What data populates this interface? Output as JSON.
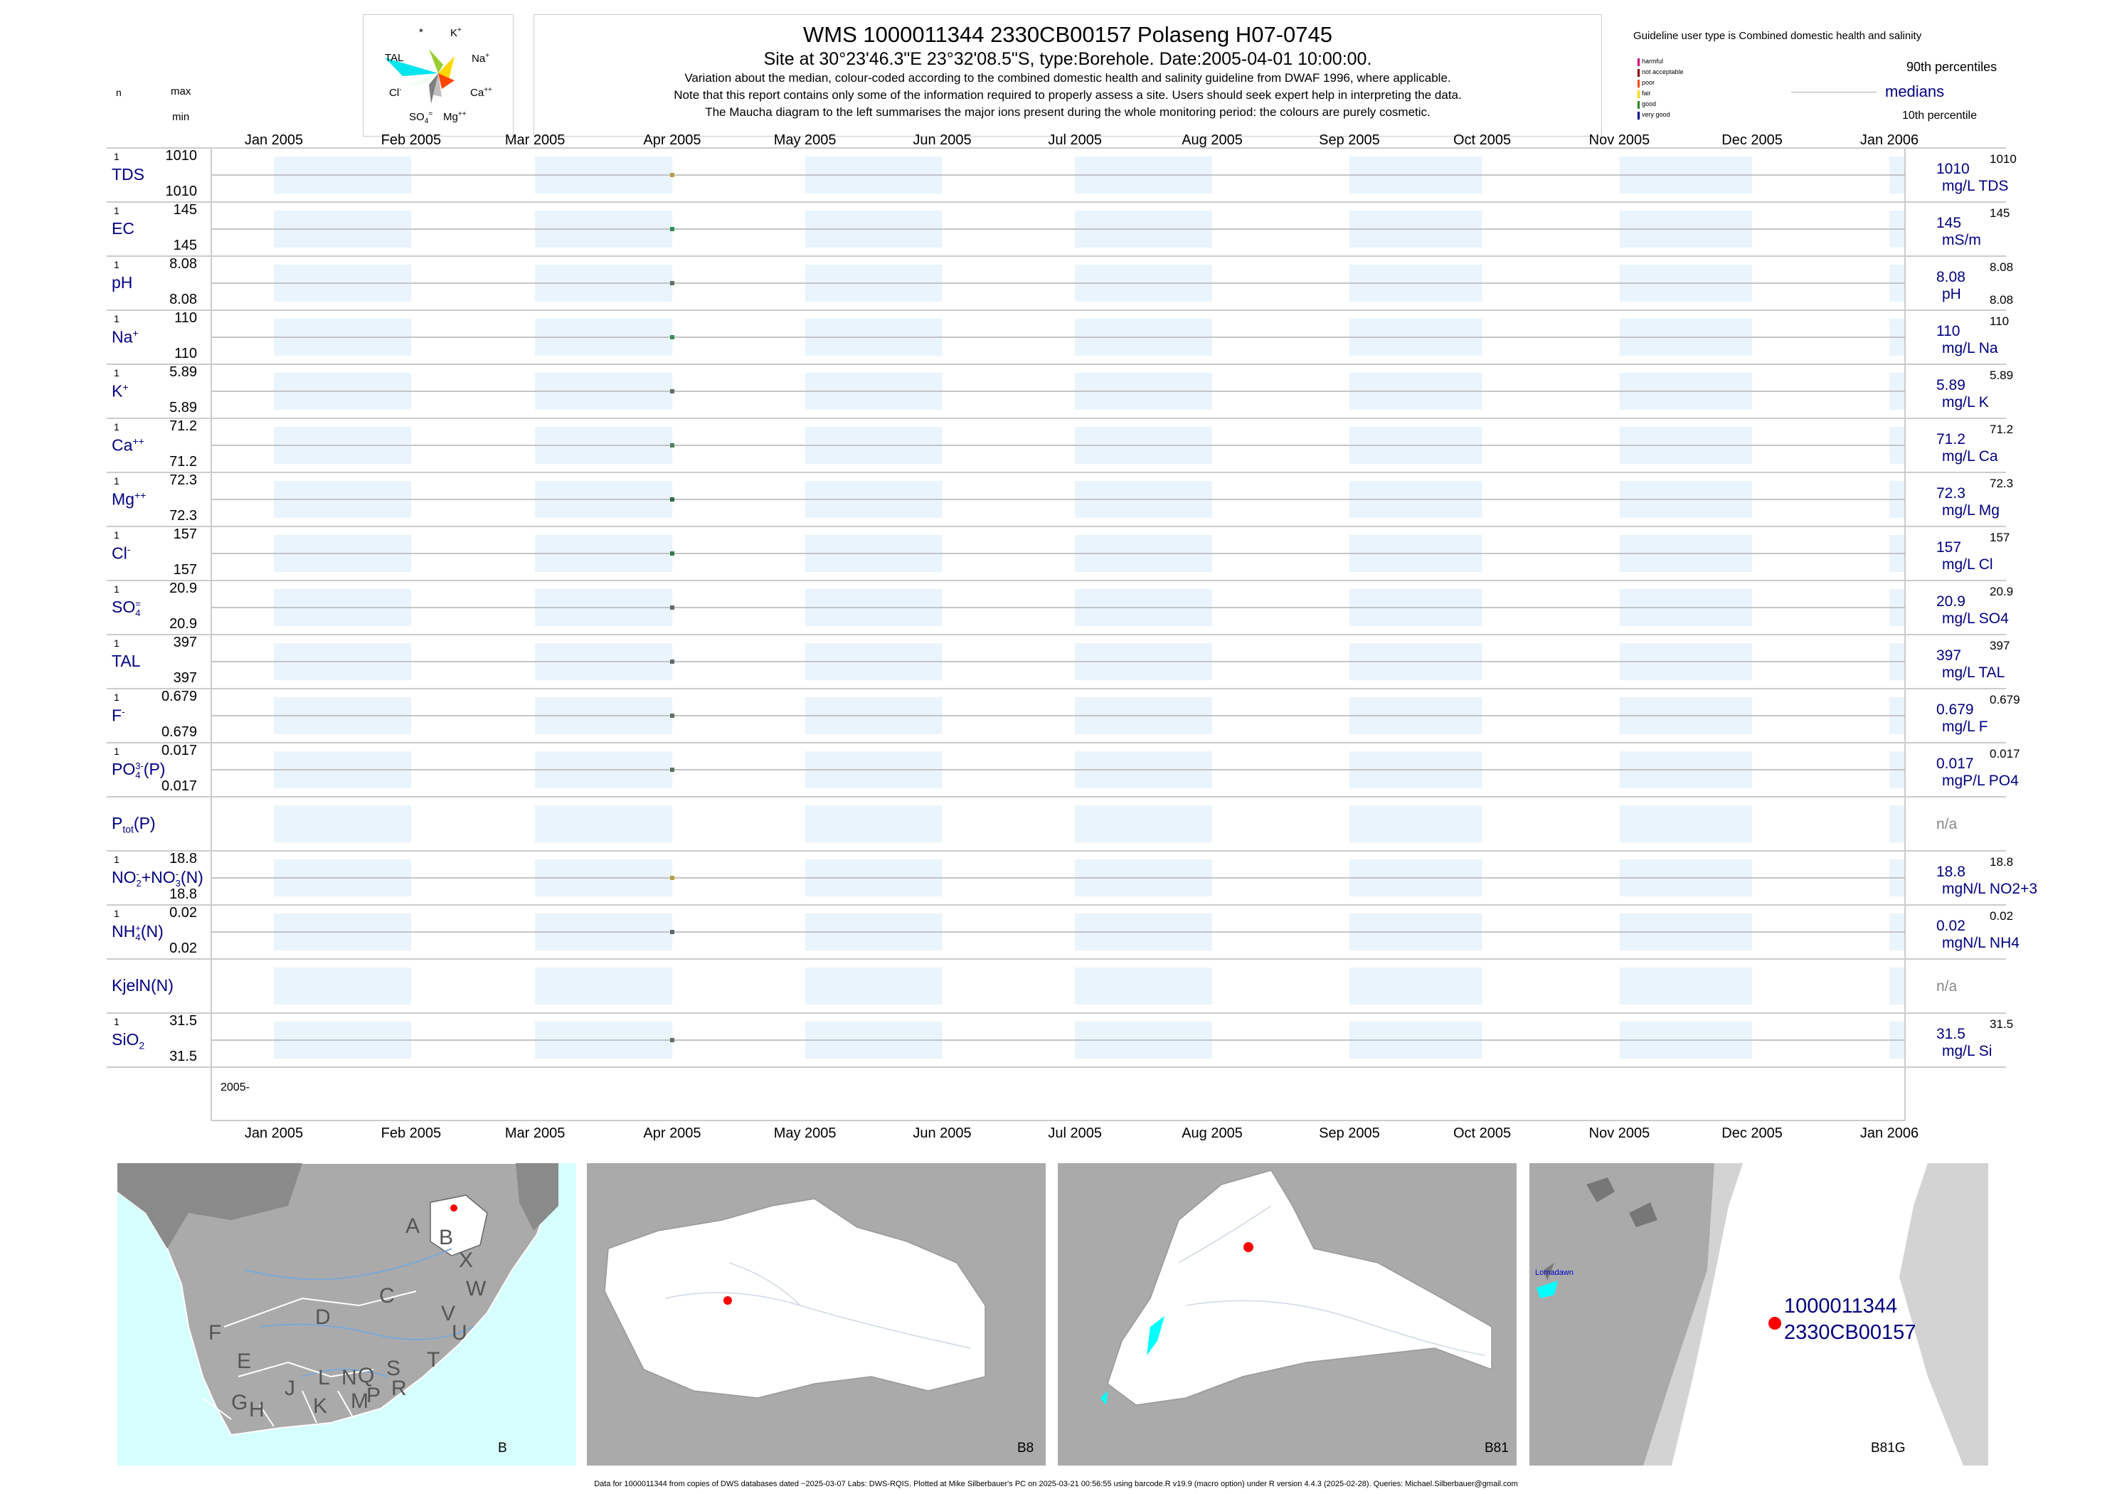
{
  "header": {
    "title": "WMS 1000011344 2330CB00157 Polaseng H07-0745",
    "site_line": "Site at 30°23'46.3\"E 23°32'08.5\"S, type:Borehole. Date:2005-04-01 10:00:00.",
    "note1": "Variation about the median,  colour-coded according to the combined domestic health and salinity guideline from DWAF 1996, where applicable.",
    "note2": "Note that this report contains only some of the information required to properly assess a site. Users should seek expert help in interpreting the data.",
    "note3": "The Maucha diagram to the left summarises the major ions present during the whole monitoring period: the colours are purely cosmetic."
  },
  "left_header": {
    "n": "n",
    "max": "max",
    "min": "min"
  },
  "maucha": {
    "labels": {
      "star": "*",
      "k": "K",
      "k_sup": "+",
      "tal": "TAL",
      "na": "Na",
      "na_sup": "+",
      "cl": "Cl",
      "cl_sup": "-",
      "ca": "Ca",
      "ca_sup": "++",
      "so4": "SO",
      "so4_sub": "4",
      "so4_sup": "=",
      "mg": "Mg",
      "mg_sup": "++"
    },
    "colors": {
      "tal": "#00e5ee",
      "na": "#ffd700",
      "k": "#9acd32",
      "ca": "#ff4500",
      "mg": "#c0c0c0",
      "so4": "#7f7f7f",
      "cl": "#f0fff0"
    }
  },
  "legend": {
    "guideline": "Guideline user type is Combined domestic health and salinity",
    "p90": "90th percentiles",
    "medians": "medians",
    "p10": "10th percentile",
    "classes": [
      {
        "label": "harmful",
        "color": "#cc0077"
      },
      {
        "label": "not acceptable",
        "color": "#8b0000"
      },
      {
        "label": "poor",
        "color": "#ff4500"
      },
      {
        "label": "fair",
        "color": "#ffd700"
      },
      {
        "label": "good",
        "color": "#228b22"
      },
      {
        "label": "very good",
        "color": "#00008b"
      }
    ]
  },
  "chart_data": {
    "type": "scatter",
    "x_range": [
      "2005-01-01",
      "2006-01-01"
    ],
    "x_tick_labels": [
      "Jan 2005",
      "Feb 2005",
      "Mar 2005",
      "Apr 2005",
      "May 2005",
      "Jun 2005",
      "Jul 2005",
      "Aug 2005",
      "Sep 2005",
      "Oct 2005",
      "Nov 2005",
      "Dec 2005",
      "Jan 2006"
    ],
    "year_label": "2005-",
    "sample_date": "2005-04-01",
    "rows": [
      {
        "name": "TDS",
        "sup": "",
        "sub": "",
        "n": "1",
        "max": "1010",
        "min": "1010",
        "median": "1010",
        "unit": "mg/L TDS",
        "p90": "1010",
        "p10": "",
        "dot_color": "#b8a040"
      },
      {
        "name": "EC",
        "sup": "",
        "sub": "",
        "n": "1",
        "max": "145",
        "min": "145",
        "median": "145",
        "unit": "mS/m",
        "p90": "145",
        "p10": "",
        "dot_color": "#2e8b57"
      },
      {
        "name": "pH",
        "sup": "",
        "sub": "",
        "n": "1",
        "max": "8.08",
        "min": "8.08",
        "median": "8.08",
        "unit": "pH",
        "p90": "8.08",
        "p10": "8.08",
        "dot_color": "#607060"
      },
      {
        "name": "Na",
        "sup": "+",
        "sub": "",
        "n": "1",
        "max": "110",
        "min": "110",
        "median": "110",
        "unit": "mg/L Na",
        "p90": "110",
        "p10": "",
        "dot_color": "#3c8c5c"
      },
      {
        "name": "K",
        "sup": "+",
        "sub": "",
        "n": "1",
        "max": "5.89",
        "min": "5.89",
        "median": "5.89",
        "unit": "mg/L K",
        "p90": "5.89",
        "p10": "",
        "dot_color": "#607060"
      },
      {
        "name": "Ca",
        "sup": "++",
        "sub": "",
        "n": "1",
        "max": "71.2",
        "min": "71.2",
        "median": "71.2",
        "unit": "mg/L Ca",
        "p90": "71.2",
        "p10": "",
        "dot_color": "#4f7f5f"
      },
      {
        "name": "Mg",
        "sup": "++",
        "sub": "",
        "n": "1",
        "max": "72.3",
        "min": "72.3",
        "median": "72.3",
        "unit": "mg/L Mg",
        "p90": "72.3",
        "p10": "",
        "dot_color": "#2e6b47"
      },
      {
        "name": "Cl",
        "sup": "-",
        "sub": "",
        "n": "1",
        "max": "157",
        "min": "157",
        "median": "157",
        "unit": "mg/L Cl",
        "p90": "157",
        "p10": "",
        "dot_color": "#2e7b47"
      },
      {
        "name": "SO",
        "sup": "=",
        "sub": "4",
        "n": "1",
        "max": "20.9",
        "min": "20.9",
        "median": "20.9",
        "unit": "mg/L SO4",
        "p90": "20.9",
        "p10": "",
        "dot_color": "#606870"
      },
      {
        "name": "TAL",
        "sup": "",
        "sub": "",
        "n": "1",
        "max": "397",
        "min": "397",
        "median": "397",
        "unit": "mg/L TAL",
        "p90": "397",
        "p10": "",
        "dot_color": "#606870"
      },
      {
        "name": "F",
        "sup": "-",
        "sub": "",
        "n": "1",
        "max": "0.679",
        "min": "0.679",
        "median": "0.679",
        "unit": "mg/L F",
        "p90": "0.679",
        "p10": "",
        "dot_color": "#607060"
      },
      {
        "name": "PO",
        "sup": "3-",
        "sub": "4",
        "suffix": "(P)",
        "n": "1",
        "max": "0.017",
        "min": "0.017",
        "median": "0.017",
        "unit": "mgP/L PO4",
        "p90": "0.017",
        "p10": "",
        "dot_color": "#607060"
      },
      {
        "name": "P",
        "sup": "",
        "sub": "tot",
        "suffix": "(P)",
        "n": "",
        "max": "",
        "min": "",
        "median": "n/a",
        "unit": "",
        "p90": "",
        "p10": "",
        "dot_color": ""
      },
      {
        "name": "NO",
        "sup": "-",
        "sub": "2",
        "suffix": "+NO",
        "sub2": "3",
        "sup2": "-",
        "suffix2": "(N)",
        "n": "1",
        "max": "18.8",
        "min": "18.8",
        "median": "18.8",
        "unit": "mgN/L NO2+3",
        "p90": "18.8",
        "p10": "",
        "dot_color": "#b8a040"
      },
      {
        "name": "NH",
        "sup": "+",
        "sub": "4",
        "suffix": "(N)",
        "n": "1",
        "max": "0.02",
        "min": "0.02",
        "median": "0.02",
        "unit": "mgN/L NH4",
        "p90": "0.02",
        "p10": "",
        "dot_color": "#606870"
      },
      {
        "name": "KjelN(N)",
        "sup": "",
        "sub": "",
        "n": "",
        "max": "",
        "min": "",
        "median": "n/a",
        "unit": "",
        "p90": "",
        "p10": "",
        "dot_color": ""
      },
      {
        "name": "SiO",
        "sup": "",
        "sub": "2",
        "n": "1",
        "max": "31.5",
        "min": "31.5",
        "median": "31.5",
        "unit": "mg/L Si",
        "p90": "31.5",
        "p10": "",
        "dot_color": "#607060"
      }
    ]
  },
  "maps": {
    "panel1": {
      "label": "B",
      "letters": [
        "A",
        "B",
        "X",
        "W",
        "C",
        "V",
        "U",
        "D",
        "F",
        "T",
        "E",
        "S",
        "Q",
        "R",
        "N",
        "P",
        "L",
        "M",
        "J",
        "K",
        "G",
        "H"
      ]
    },
    "panel2": {
      "label": "B8"
    },
    "panel3": {
      "label": "B81"
    },
    "panel4": {
      "label": "B81G",
      "town": "Lomadawn",
      "site_id": "1000011344",
      "site_code": "2330CB00157"
    },
    "site_color": "#ff0000",
    "water_color": "#00ffff",
    "sea_color": "#d6ffff"
  },
  "footer": "Data for 1000011344 from copies of DWS databases dated ~2025-03-07 Labs: DWS-RQIS. Plotted at Mike Silberbauer's PC on 2025-03-21 00:56:55 using barcode.R v19.9 (macro option) under R version 4.4.3 (2025-02-28). Queries: Michael.Silberbauer@gmail.com"
}
